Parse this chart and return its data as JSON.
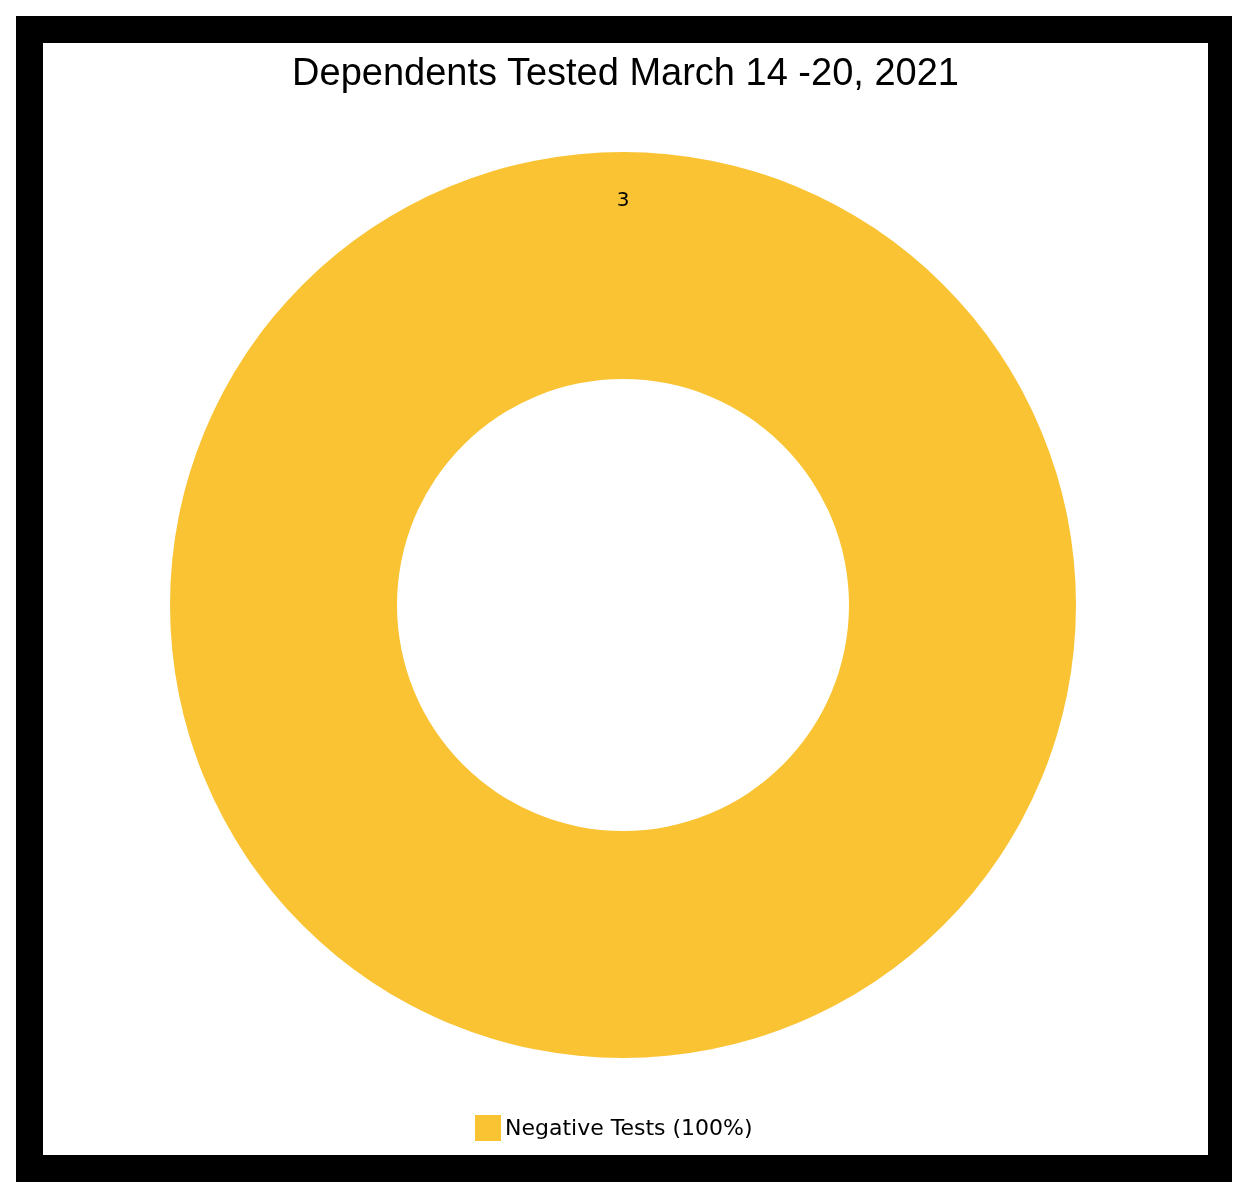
{
  "chart_data": {
    "type": "donut",
    "title": "Dependents Tested March 14 -20, 2021",
    "categories": [
      "Negative Tests (100%)"
    ],
    "values": [
      3
    ],
    "colors": [
      "#f9c333"
    ],
    "data_labels": true,
    "legend": "bottom"
  }
}
